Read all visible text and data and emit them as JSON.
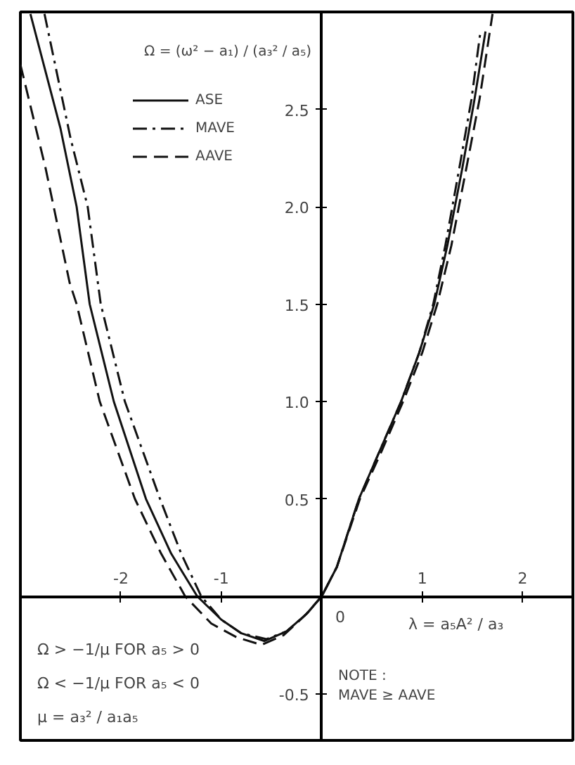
{
  "chart_data": {
    "type": "line",
    "xlim": [
      -3,
      2.5
    ],
    "ylim": [
      -0.74,
      3.0
    ],
    "xticks": [
      -2,
      -1,
      1,
      2
    ],
    "yticks": [
      -0.5,
      0.5,
      {
        "value": 1,
        "label": "1.0"
      },
      1.5,
      {
        "value": 2,
        "label": "2.0"
      },
      2.5
    ],
    "grid": false,
    "legend": "top left",
    "marker": "none",
    "series": [
      {
        "name": "ASE",
        "color": "#111111",
        "line_style": "solid",
        "x": [
          -2.9,
          -2.6,
          -2.44,
          -2.31,
          -2.07,
          -1.75,
          -1.5,
          -1.24,
          -1.0,
          -0.8,
          -0.57,
          -0.35,
          -0.15,
          0,
          0.15,
          0.37,
          0.58,
          0.79,
          0.97,
          1.12,
          1.25,
          1.4,
          1.52,
          1.63
        ],
        "values": [
          2.99,
          2.4,
          2.0,
          1.5,
          1.0,
          0.5,
          0.22,
          0,
          -0.12,
          -0.19,
          -0.23,
          -0.18,
          -0.09,
          0,
          0.15,
          0.5,
          0.75,
          1.0,
          1.25,
          1.5,
          1.8,
          2.2,
          2.55,
          2.9
        ]
      },
      {
        "name": "MAVE",
        "color": "#111111",
        "line_style": "dashdot",
        "x": [
          -2.76,
          -2.5,
          -2.33,
          -2.2,
          -1.96,
          -1.61,
          -1.4,
          -1.2,
          -1.0,
          -0.8,
          -0.55,
          -0.35,
          -0.15,
          0,
          0.15,
          0.37,
          0.58,
          0.79,
          0.97,
          1.11,
          1.23,
          1.37,
          1.49,
          1.58
        ],
        "values": [
          2.99,
          2.35,
          2.0,
          1.5,
          1.0,
          0.5,
          0.22,
          0,
          -0.12,
          -0.19,
          -0.22,
          -0.18,
          -0.09,
          0,
          0.15,
          0.5,
          0.75,
          1.0,
          1.25,
          1.5,
          1.8,
          2.2,
          2.55,
          2.9
        ]
      },
      {
        "name": "AAVE",
        "color": "#111111",
        "line_style": "dashed",
        "x": [
          -3.0,
          -2.75,
          -2.51,
          -2.44,
          -2.21,
          -1.86,
          -1.6,
          -1.36,
          -1.1,
          -0.85,
          -0.6,
          -0.38,
          -0.17,
          0,
          0.15,
          0.38,
          0.6,
          0.81,
          1.0,
          1.15,
          1.29,
          1.44,
          1.57,
          1.7
        ],
        "values": [
          2.73,
          2.2,
          1.61,
          1.5,
          1.0,
          0.5,
          0.22,
          0,
          -0.14,
          -0.21,
          -0.25,
          -0.2,
          -0.1,
          0,
          0.15,
          0.5,
          0.75,
          1.0,
          1.25,
          1.5,
          1.8,
          2.2,
          2.55,
          2.99
        ]
      }
    ],
    "annotations": [
      "Ω = (ω² − a₁) / (a₃² / a₅)",
      "Ω > −1/μ   FOR   a₅ > 0",
      "Ω < −1/μ   FOR   a₅ < 0",
      "μ = a₃² / a₁a₅",
      "λ = a₅A² / a₃",
      "NOTE :",
      "MAVE  ≥  AAVE",
      "0"
    ]
  }
}
